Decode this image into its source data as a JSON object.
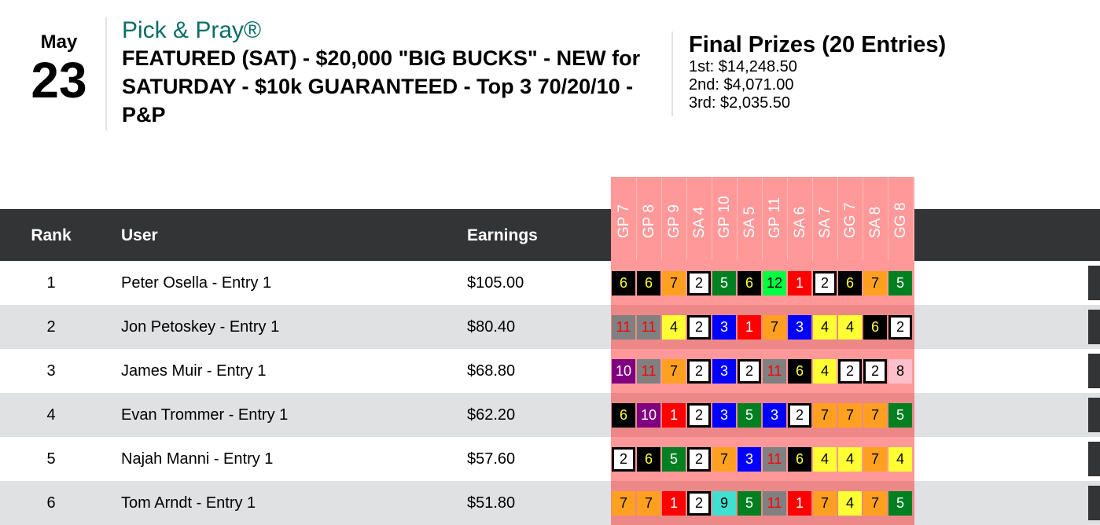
{
  "date": {
    "month": "May",
    "day": "23"
  },
  "contest": {
    "brand": "Pick & Pray®",
    "title": "FEATURED (SAT) - $20,000 \"BIG BUCKS\" - NEW for SATURDAY - $10k GUARANTEED - Top 3 70/20/10 - P&P"
  },
  "prizes": {
    "heading": "Final Prizes (20 Entries)",
    "items": [
      "1st: $14,248.50",
      "2nd: $4,071.00",
      "3rd: $2,035.50"
    ]
  },
  "table": {
    "headers": {
      "rank": "Rank",
      "user": "User",
      "earnings": "Earnings"
    },
    "races": [
      "GP 7",
      "GP 8",
      "GP 9",
      "SA 4",
      "GP 10",
      "SA 5",
      "GP 11",
      "SA 6",
      "SA 7",
      "GG 7",
      "SA 8",
      "GG 8"
    ],
    "rows": [
      {
        "rank": "1",
        "user": "Peter Osella - Entry 1",
        "earnings": "$105.00",
        "picks": [
          6,
          6,
          7,
          2,
          5,
          6,
          12,
          1,
          2,
          6,
          7,
          5
        ]
      },
      {
        "rank": "2",
        "user": "Jon Petoskey - Entry 1",
        "earnings": "$80.40",
        "picks": [
          11,
          11,
          4,
          2,
          3,
          1,
          7,
          3,
          4,
          4,
          6,
          2
        ]
      },
      {
        "rank": "3",
        "user": "James Muir - Entry 1",
        "earnings": "$68.80",
        "picks": [
          10,
          11,
          7,
          2,
          3,
          2,
          11,
          6,
          4,
          2,
          2,
          8
        ]
      },
      {
        "rank": "4",
        "user": "Evan Trommer - Entry 1",
        "earnings": "$62.20",
        "picks": [
          6,
          10,
          1,
          2,
          3,
          5,
          3,
          2,
          7,
          7,
          7,
          5
        ]
      },
      {
        "rank": "5",
        "user": "Najah Manni - Entry 1",
        "earnings": "$57.60",
        "picks": [
          2,
          6,
          5,
          2,
          7,
          3,
          11,
          6,
          4,
          4,
          7,
          4
        ]
      },
      {
        "rank": "6",
        "user": "Tom Arndt - Entry 1",
        "earnings": "$51.80",
        "picks": [
          7,
          7,
          1,
          2,
          9,
          5,
          11,
          1,
          7,
          4,
          7,
          5
        ]
      }
    ]
  },
  "saddle_colors": {
    "1": {
      "bg": "#ff0000",
      "fg": "#ffffff"
    },
    "2": {
      "bg": "#ffffff",
      "fg": "#000000",
      "border": "#000000"
    },
    "3": {
      "bg": "#0000ff",
      "fg": "#ffffff"
    },
    "4": {
      "bg": "#ffff33",
      "fg": "#000000"
    },
    "5": {
      "bg": "#008020",
      "fg": "#ffffff"
    },
    "6": {
      "bg": "#000000",
      "fg": "#ffff33"
    },
    "7": {
      "bg": "#ffa020",
      "fg": "#000000"
    },
    "8": {
      "bg": "#ffc0cb",
      "fg": "#000000"
    },
    "9": {
      "bg": "#40e0d0",
      "fg": "#000000"
    },
    "10": {
      "bg": "#800080",
      "fg": "#ffffff"
    },
    "11": {
      "bg": "#808080",
      "fg": "#ff0000"
    },
    "12": {
      "bg": "#00ff40",
      "fg": "#000000"
    }
  }
}
